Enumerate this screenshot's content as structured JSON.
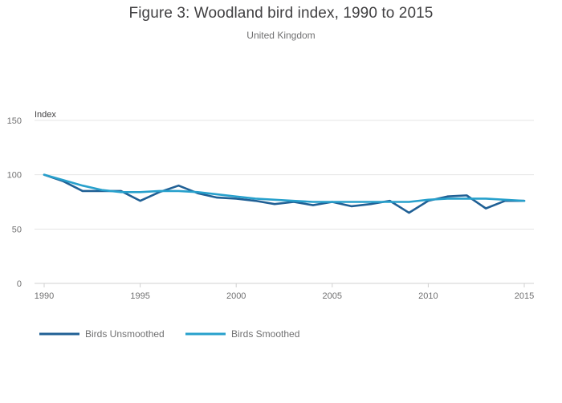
{
  "chart_data": {
    "type": "line",
    "title": "Figure 3: Woodland bird index, 1990 to 2015",
    "subtitle": "United Kingdom",
    "ylabel": "Index",
    "xlabel": "",
    "ylim": [
      0,
      150
    ],
    "xlim": [
      1990,
      2015
    ],
    "yticks": [
      0,
      50,
      100,
      150
    ],
    "xticks": [
      1990,
      1995,
      2000,
      2005,
      2010,
      2015
    ],
    "grid": true,
    "legend_position": "bottom-left",
    "x": [
      1990,
      1991,
      1992,
      1993,
      1994,
      1995,
      1996,
      1997,
      1998,
      1999,
      2000,
      2001,
      2002,
      2003,
      2004,
      2005,
      2006,
      2007,
      2008,
      2009,
      2010,
      2011,
      2012,
      2013,
      2014,
      2015
    ],
    "series": [
      {
        "name": "Birds Unsmoothed",
        "color": "#206095",
        "values": [
          100,
          94,
          85,
          85,
          85,
          76,
          84,
          90,
          83,
          79,
          78,
          76,
          73,
          75,
          72,
          75,
          71,
          73,
          76,
          65,
          76,
          80,
          81,
          69,
          76,
          76
        ]
      },
      {
        "name": "Birds Smoothed",
        "color": "#27a0cc",
        "values": [
          100,
          95,
          90,
          86,
          84,
          84,
          85,
          85,
          84,
          82,
          80,
          78,
          77,
          76,
          75,
          75,
          75,
          75,
          75,
          75,
          77,
          78,
          78,
          78,
          77,
          76
        ]
      }
    ]
  }
}
